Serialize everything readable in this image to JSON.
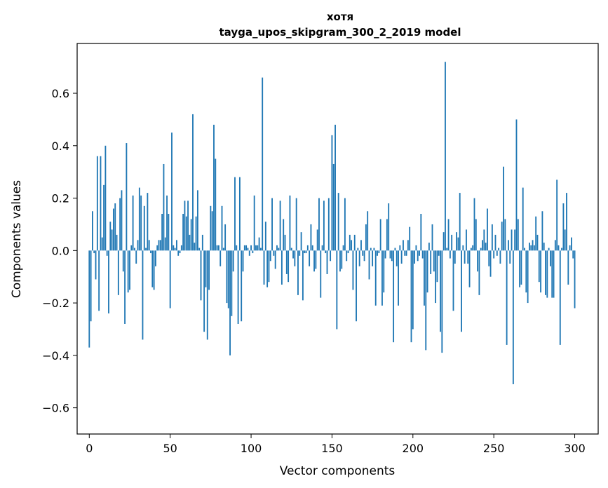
{
  "chart_data": {
    "type": "bar",
    "title": "хотя",
    "subtitle": "tayga_upos_skipgram_300_2_2019 model",
    "xlabel": "Vector components",
    "ylabel": "Components values",
    "xlim": [
      -7.5,
      314.5
    ],
    "ylim": [
      -0.7,
      0.79
    ],
    "xticks": [
      0,
      50,
      100,
      150,
      200,
      250,
      300
    ],
    "xtick_labels": [
      "0",
      "50",
      "100",
      "150",
      "200",
      "250",
      "300"
    ],
    "yticks": [
      -0.6,
      -0.4,
      -0.2,
      0.0,
      0.2,
      0.4,
      0.6
    ],
    "ytick_labels": [
      "−0.6",
      "−0.4",
      "−0.2",
      "0.0",
      "0.2",
      "0.4",
      "0.6"
    ],
    "grid": false,
    "bar_color": "#1f77b4",
    "values": [
      -0.37,
      -0.27,
      0.15,
      -0.01,
      -0.11,
      0.36,
      -0.23,
      0.36,
      0.05,
      0.25,
      0.4,
      -0.02,
      -0.24,
      0.11,
      0.08,
      0.16,
      0.18,
      0.06,
      -0.17,
      0.2,
      0.23,
      -0.08,
      -0.28,
      0.41,
      -0.16,
      -0.15,
      0.02,
      0.21,
      0.01,
      -0.05,
      0.04,
      0.24,
      0.21,
      -0.34,
      0.17,
      0.01,
      0.22,
      0.04,
      -0.01,
      -0.14,
      -0.15,
      -0.06,
      0.02,
      0.04,
      0.04,
      0.14,
      0.33,
      0.05,
      0.21,
      0.14,
      -0.22,
      0.45,
      0.02,
      0.01,
      0.04,
      -0.02,
      -0.01,
      0.02,
      0.14,
      0.19,
      0.13,
      0.19,
      0.06,
      0.12,
      0.52,
      0.03,
      0.13,
      0.23,
      0.01,
      -0.19,
      0.06,
      -0.31,
      -0.14,
      -0.34,
      -0.15,
      0.17,
      0.15,
      0.48,
      0.35,
      0.02,
      0.02,
      -0.06,
      0.17,
      0.01,
      0.1,
      -0.2,
      -0.22,
      -0.4,
      -0.25,
      -0.08,
      0.28,
      0.02,
      -0.28,
      0.28,
      -0.27,
      -0.08,
      0.02,
      0.02,
      0.01,
      -0.02,
      0.02,
      -0.01,
      0.21,
      0.02,
      0.02,
      0.05,
      0.01,
      0.66,
      -0.13,
      0.11,
      -0.14,
      -0.12,
      -0.04,
      0.2,
      -0.02,
      -0.07,
      0.02,
      0.01,
      0.19,
      -0.13,
      0.12,
      0.06,
      -0.09,
      -0.12,
      0.21,
      0.01,
      -0.03,
      -0.06,
      0.2,
      -0.17,
      -0.02,
      0.07,
      -0.19,
      -0.01,
      -0.01,
      0.02,
      -0.06,
      0.1,
      0.02,
      -0.08,
      -0.07,
      0.08,
      0.2,
      -0.18,
      0.02,
      0.19,
      -0.01,
      -0.09,
      0.2,
      -0.04,
      0.44,
      0.33,
      0.48,
      -0.3,
      0.22,
      -0.08,
      -0.07,
      0.02,
      0.2,
      -0.04,
      -0.01,
      0.06,
      0.04,
      -0.15,
      0.06,
      -0.27,
      0.01,
      -0.06,
      0.04,
      -0.02,
      -0.04,
      0.1,
      0.15,
      -0.11,
      0.01,
      -0.06,
      0.01,
      -0.21,
      -0.02,
      -0.01,
      0.12,
      -0.21,
      -0.16,
      -0.03,
      0.12,
      0.18,
      -0.03,
      -0.04,
      -0.35,
      0.01,
      -0.06,
      -0.21,
      0.02,
      -0.05,
      0.04,
      -0.02,
      -0.02,
      0.04,
      0.09,
      -0.35,
      -0.3,
      -0.05,
      0.02,
      -0.04,
      -0.02,
      0.14,
      -0.03,
      -0.21,
      -0.38,
      -0.16,
      0.03,
      -0.09,
      0.1,
      -0.08,
      -0.2,
      -0.12,
      -0.02,
      -0.31,
      -0.39,
      0.07,
      0.72,
      0.01,
      0.12,
      -0.03,
      0.06,
      -0.23,
      -0.05,
      0.07,
      0.05,
      0.22,
      -0.31,
      0.02,
      -0.05,
      0.08,
      -0.05,
      -0.14,
      0.01,
      0.02,
      0.2,
      0.12,
      -0.08,
      -0.17,
      0.01,
      0.04,
      0.08,
      0.03,
      0.16,
      -0.06,
      -0.1,
      0.1,
      -0.03,
      0.06,
      -0.02,
      0.01,
      -0.05,
      0.11,
      0.32,
      0.12,
      -0.36,
      0.04,
      -0.05,
      0.08,
      -0.51,
      0.08,
      0.5,
      0.12,
      -0.14,
      -0.13,
      0.24,
      0.01,
      -0.16,
      -0.2,
      0.03,
      0.02,
      0.04,
      0.02,
      0.13,
      0.06,
      -0.12,
      -0.16,
      0.15,
      0.03,
      -0.17,
      -0.18,
      0.01,
      -0.06,
      -0.18,
      -0.18,
      0.04,
      0.27,
      0.02,
      -0.36,
      0.01,
      0.18,
      0.08,
      0.22,
      -0.13,
      0.02,
      0.05,
      -0.03,
      -0.22
    ]
  }
}
